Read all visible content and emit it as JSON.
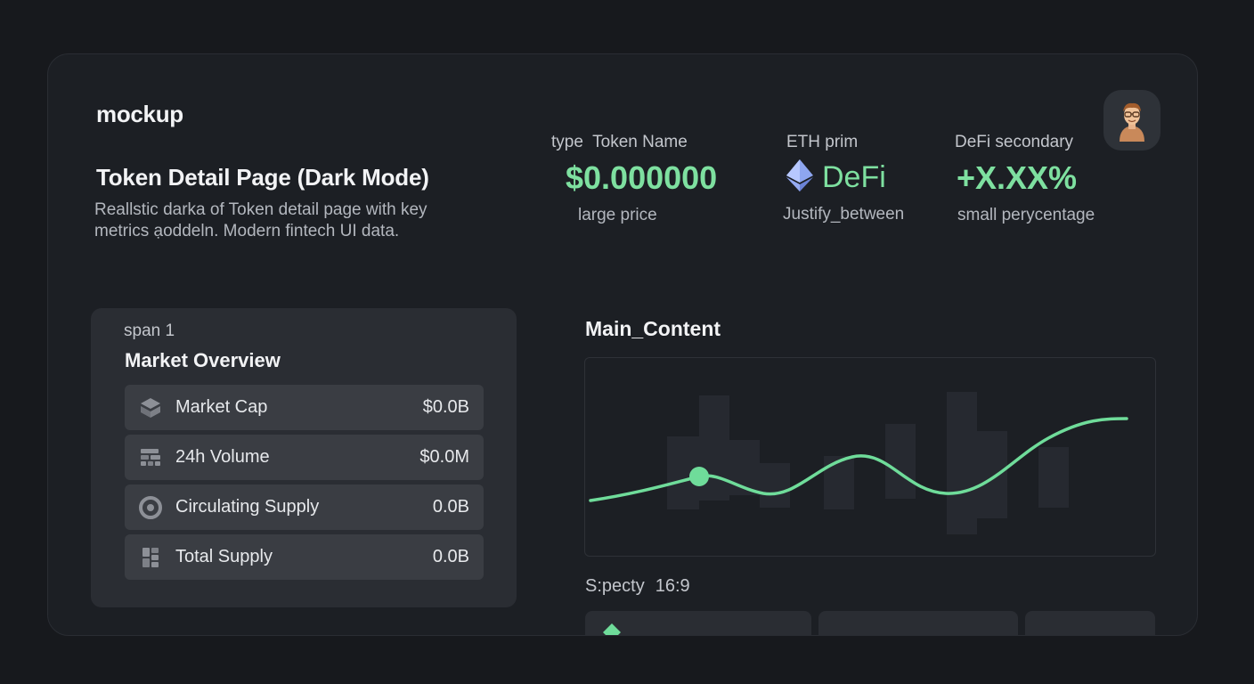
{
  "header": {
    "brand": "mockup",
    "title": "Token Detail Page (Dark Mode)",
    "description": "Reallstic darka of Token detail page with key metrics ạoddeln. Modern fintech UI data."
  },
  "price_block": {
    "label_prefix": "type",
    "label": "Token Name",
    "value": "$0.000000",
    "sub": "large price"
  },
  "chain_block": {
    "label": "ETH prim",
    "icon": "ethereum-icon",
    "value": "DeFi",
    "sub": "Justify_between"
  },
  "change_block": {
    "label": "DeFi secondary",
    "value": "+X.XX%",
    "sub": "small perycentage"
  },
  "avatar": {
    "icon": "user-avatar-icon"
  },
  "market_overview": {
    "span": "span 1",
    "title": "Market Overview",
    "rows": [
      {
        "icon": "layers-icon",
        "label": "Market Cap",
        "value": "$0.0B"
      },
      {
        "icon": "volume-bars-icon",
        "label": "24h Volume",
        "value": "$0.0M"
      },
      {
        "icon": "circle-supply-icon",
        "label": "Circulating Supply",
        "value": "0.0B"
      },
      {
        "icon": "stack-icon",
        "label": "Total Supply",
        "value": "0.0B"
      }
    ]
  },
  "main": {
    "title": "Main_Content",
    "aspect_label": "S:pecty",
    "aspect_value": "16:9"
  },
  "colors": {
    "accent": "#7ee0a0",
    "background": "#17191d",
    "card": "#2a2d33",
    "row": "#3a3d43"
  }
}
